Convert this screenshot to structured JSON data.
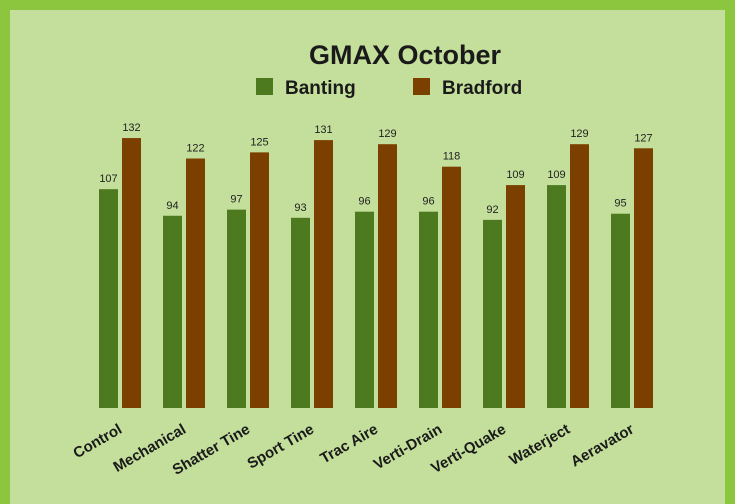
{
  "chart_data": {
    "type": "bar",
    "title": "GMAX October",
    "categories": [
      "Control",
      "Mechanical",
      "Shatter Tine",
      "Sport Tine",
      "Trac Aire",
      "Verti-Drain",
      "Verti-Quake",
      "Waterject",
      "Aeravator"
    ],
    "series": [
      {
        "name": "Banting",
        "color": "#4d7a1e",
        "values": [
          107,
          94,
          97,
          93,
          96,
          96,
          92,
          109,
          95
        ]
      },
      {
        "name": "Bradford",
        "color": "#7b3f00",
        "values": [
          132,
          122,
          125,
          131,
          129,
          118,
          109,
          129,
          127
        ]
      }
    ]
  }
}
